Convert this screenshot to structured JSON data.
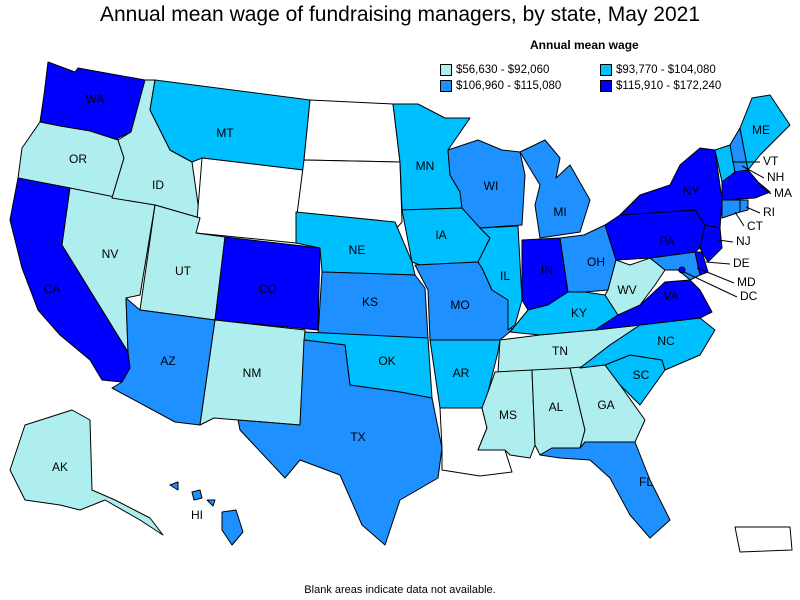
{
  "title": "Annual mean wage of fundraising managers, by state, May 2021",
  "legend": {
    "title": "Annual mean wage",
    "items": [
      {
        "label": "$56,630 - $92,060",
        "color": "#afeeee"
      },
      {
        "label": "$93,770 - $104,080",
        "color": "#00bfff"
      },
      {
        "label": "$106,960 - $115,080",
        "color": "#1e90ff"
      },
      {
        "label": "$115,910 - $172,240",
        "color": "#0000ff"
      }
    ]
  },
  "footnote": "Blank areas indicate data not available.",
  "no_data_color": "#ffffff",
  "state_class": {
    "WA": 3,
    "OR": 0,
    "CA": 3,
    "NV": 0,
    "ID": 0,
    "MT": 1,
    "WY": -1,
    "UT": 0,
    "AZ": 2,
    "CO": 3,
    "NM": 0,
    "ND": -1,
    "SD": -1,
    "NE": 1,
    "KS": 2,
    "OK": 1,
    "TX": 2,
    "MN": 1,
    "IA": 1,
    "MO": 2,
    "AR": 1,
    "LA": -1,
    "WI": 2,
    "IL": 1,
    "MI": 2,
    "IN": 3,
    "OH": 2,
    "KY": 1,
    "TN": 0,
    "MS": 0,
    "AL": 0,
    "GA": 0,
    "FL": 2,
    "SC": 1,
    "NC": 1,
    "VA": 3,
    "WV": 0,
    "MD": 2,
    "DE": 3,
    "DC": 3,
    "PA": 3,
    "NJ": 3,
    "NY": 3,
    "CT": 2,
    "RI": 2,
    "MA": 3,
    "VT": 1,
    "NH": 2,
    "ME": 1,
    "AK": 0,
    "HI": 2,
    "PR": -1
  },
  "labels": {
    "WA": "WA",
    "OR": "OR",
    "CA": "CA",
    "NV": "NV",
    "ID": "ID",
    "MT": "MT",
    "UT": "UT",
    "AZ": "AZ",
    "CO": "CO",
    "NM": "NM",
    "NE": "NE",
    "KS": "KS",
    "OK": "OK",
    "TX": "TX",
    "MN": "MN",
    "IA": "IA",
    "MO": "MO",
    "AR": "AR",
    "WI": "WI",
    "IL": "IL",
    "MI": "MI",
    "IN": "IN",
    "OH": "OH",
    "KY": "KY",
    "TN": "TN",
    "MS": "MS",
    "AL": "AL",
    "GA": "GA",
    "FL": "FL",
    "SC": "SC",
    "NC": "NC",
    "VA": "VA",
    "WV": "WV",
    "PA": "PA",
    "NY": "NY",
    "ME": "ME",
    "VT": "VT",
    "NH": "NH",
    "MA": "MA",
    "RI": "RI",
    "CT": "CT",
    "NJ": "NJ",
    "DE": "DE",
    "MD": "MD",
    "DC": "DC",
    "AK": "AK",
    "HI": "HI"
  }
}
